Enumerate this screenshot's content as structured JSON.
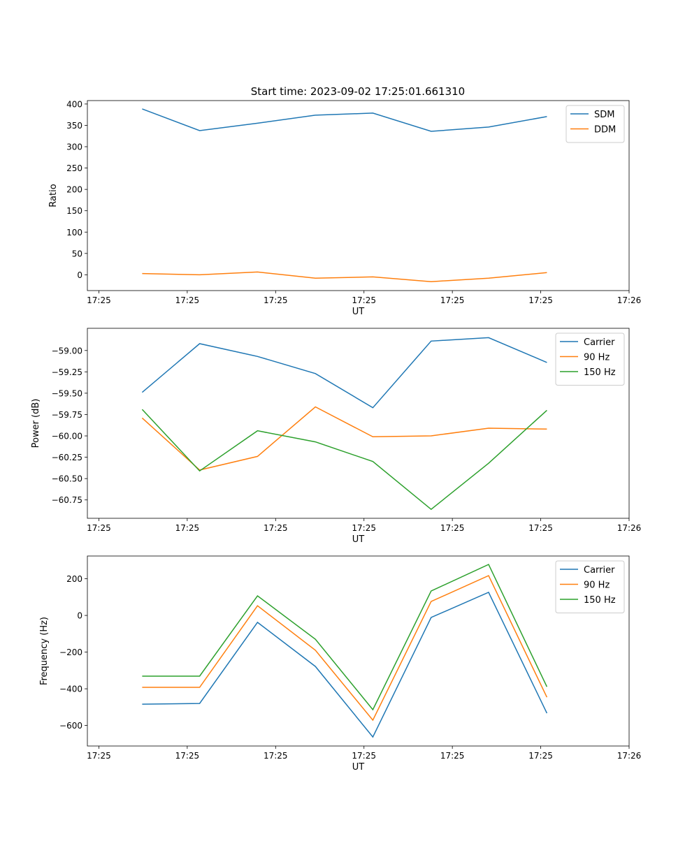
{
  "chart_data": {
    "type": "line",
    "title": "Start time: 2023-09-02 17:25:01.661310",
    "colors": {
      "blue": "#1f77b4",
      "orange": "#ff7f0e",
      "green": "#2ca02c"
    },
    "x_seconds_after_1725": [
      4.9,
      11.4,
      17.95,
      24.5,
      31.0,
      37.6,
      44.1,
      50.7
    ],
    "x_ticks": [
      0,
      10,
      20,
      30,
      40,
      50,
      60
    ],
    "x_tick_labels": [
      "17:25",
      "17:25",
      "17:25",
      "17:25",
      "17:25",
      "17:25",
      "17:26"
    ],
    "xlim": [
      -1.3,
      60
    ],
    "subplots": [
      {
        "ylabel": "Ratio",
        "xlabel": "UT",
        "ylim": [
          -37,
          408
        ],
        "y_ticks": [
          0,
          50,
          100,
          150,
          200,
          250,
          300,
          350,
          400
        ],
        "y_tick_labels": [
          "0",
          "50",
          "100",
          "150",
          "200",
          "250",
          "300",
          "350",
          "400"
        ],
        "legend": "top-right",
        "series": [
          {
            "name": "SDM",
            "color": "#1f77b4",
            "values": [
              388.5,
              337.7,
              355,
              373.8,
              378.7,
              336,
              346,
              370.5
            ]
          },
          {
            "name": "DDM",
            "color": "#ff7f0e",
            "values": [
              3,
              0,
              6.5,
              -8,
              -5,
              -16,
              -8,
              5
            ]
          }
        ]
      },
      {
        "ylabel": "Power (dB)",
        "xlabel": "UT",
        "ylim": [
          -60.965,
          -58.74
        ],
        "y_ticks": [
          -59.0,
          -59.25,
          -59.5,
          -59.75,
          -60.0,
          -60.25,
          -60.5,
          -60.75
        ],
        "y_tick_labels": [
          "−59.00",
          "−59.25",
          "−59.50",
          "−59.75",
          "−60.00",
          "−60.25",
          "−60.50",
          "−60.75"
        ],
        "legend": "top-right",
        "series": [
          {
            "name": "Carrier",
            "color": "#1f77b4",
            "values": [
              -59.49,
              -58.92,
              -59.07,
              -59.27,
              -59.67,
              -58.89,
              -58.85,
              -59.14
            ]
          },
          {
            "name": "90 Hz",
            "color": "#ff7f0e",
            "values": [
              -59.79,
              -60.4,
              -60.24,
              -59.66,
              -60.01,
              -60.0,
              -59.91,
              -59.92
            ]
          },
          {
            "name": "150 Hz",
            "color": "#2ca02c",
            "values": [
              -59.69,
              -60.41,
              -59.94,
              -60.07,
              -60.3,
              -60.86,
              -60.32,
              -59.7
            ]
          }
        ]
      },
      {
        "ylabel": "Frequency (Hz)",
        "xlabel": "UT",
        "ylim": [
          -712,
          324
        ],
        "y_ticks": [
          -600,
          -400,
          -200,
          0,
          200
        ],
        "y_tick_labels": [
          "−600",
          "−400",
          "−200",
          "0",
          "200"
        ],
        "legend": "top-right",
        "series": [
          {
            "name": "Carrier",
            "color": "#1f77b4",
            "values": [
              -484,
              -480,
              -38,
              -278,
              -663,
              -11,
              126,
              -533
            ]
          },
          {
            "name": "90 Hz",
            "color": "#ff7f0e",
            "values": [
              -392,
              -392,
              53,
              -190,
              -571,
              76,
              217,
              -446
            ]
          },
          {
            "name": "150 Hz",
            "color": "#2ca02c",
            "values": [
              -331,
              -331,
              107,
              -130,
              -514,
              133,
              278,
              -389
            ]
          }
        ]
      }
    ]
  }
}
